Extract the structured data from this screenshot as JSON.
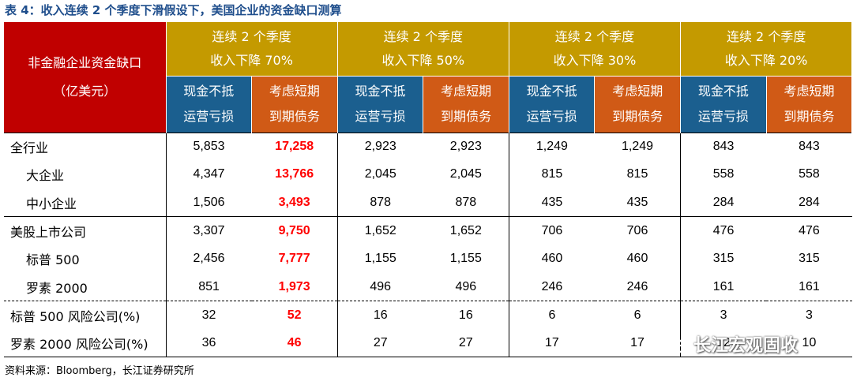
{
  "caption": "表 4：收入连续 2 个季度下滑假设下，美国企业的资金缺口测算",
  "header": {
    "corner_line1": "非金融企业资金缺口",
    "corner_line2": "（亿美元）",
    "scenarios": [
      {
        "line1": "连续 2 个季度",
        "line2": "收入下降 70%"
      },
      {
        "line1": "连续 2 个季度",
        "line2": "收入下降 50%"
      },
      {
        "line1": "连续 2 个季度",
        "line2": "收入下降 30%"
      },
      {
        "line1": "连续 2 个季度",
        "line2": "收入下降 20%"
      }
    ],
    "sub_cash_line1": "现金不抵",
    "sub_cash_line2": "运营亏损",
    "sub_debt_line1": "考虑短期",
    "sub_debt_line2": "到期债务"
  },
  "rows": [
    {
      "label": "全行业",
      "values": [
        "5,853",
        "17,258",
        "2,923",
        "2,923",
        "1,249",
        "1,249",
        "843",
        "843"
      ]
    },
    {
      "label": "大企业",
      "values": [
        "4,347",
        "13,766",
        "2,045",
        "2,045",
        "815",
        "815",
        "558",
        "558"
      ]
    },
    {
      "label": "中小企业",
      "values": [
        "1,506",
        "3,493",
        "878",
        "878",
        "435",
        "435",
        "284",
        "284"
      ]
    },
    {
      "label": "美股上市公司",
      "values": [
        "3,307",
        "9,750",
        "1,652",
        "1,652",
        "706",
        "706",
        "476",
        "476"
      ]
    },
    {
      "label": "标普 500",
      "values": [
        "2,456",
        "7,777",
        "1,155",
        "1,155",
        "460",
        "460",
        "315",
        "315"
      ]
    },
    {
      "label": "罗素 2000",
      "values": [
        "851",
        "1,973",
        "496",
        "496",
        "246",
        "246",
        "161",
        "161"
      ]
    },
    {
      "label": "标普 500 风险公司(%)",
      "values": [
        "32",
        "52",
        "16",
        "16",
        "6",
        "6",
        "3",
        "3"
      ]
    },
    {
      "label": "罗素 2000 风险公司(%)",
      "values": [
        "36",
        "46",
        "27",
        "27",
        "17",
        "17",
        "12",
        "10"
      ]
    }
  ],
  "source": "资料来源：Bloomberg，长江证券研究所",
  "watermark": "长江宏观固收",
  "colors": {
    "corner": "#c00000",
    "scenario": "#c49a00",
    "cash": "#1b5f8f",
    "debt": "#d05a16",
    "highlight": "#ff0000",
    "caption": "#1f4e8c"
  }
}
